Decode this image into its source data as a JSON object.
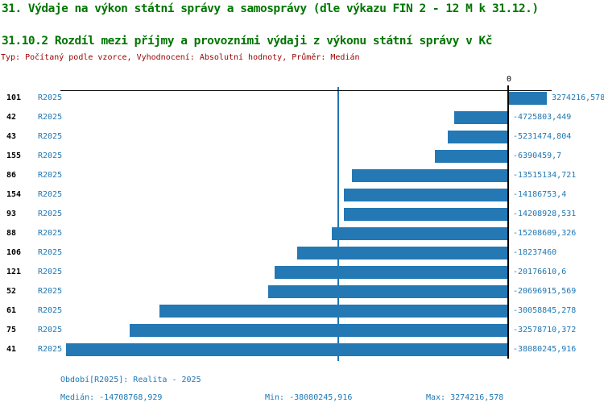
{
  "header": {
    "title1": "31. Výdaje na výkon státní správy a samosprávy (dle výkazu FIN 2 - 12 M k 31.12.)",
    "title2": "31.10.2 Rozdíl mezi příjmy a provozními výdaji z výkonu státní správy v Kč",
    "meta": "Typ: Počítaný podle vzorce, Vyhodnocení: Absolutní hodnoty, Průměr: Medián"
  },
  "colors": {
    "title_green": "#007500",
    "meta_red": "#990000",
    "text_blue": "#1f77b4",
    "bar_blue": "#2478b4",
    "median_line_blue": "#1f77b4",
    "axis_black": "#000000"
  },
  "chart_data": {
    "type": "bar",
    "orientation": "horizontal",
    "title": "31.10.2 Rozdíl mezi příjmy a provozními výdaji z výkonu státní správy v Kč",
    "xlabel": "",
    "ylabel": "",
    "axis_zero_label": "0",
    "period_label": "R2025",
    "grid": false,
    "legend_position": "none",
    "xlim": [
      -38080245.916,
      3274216.578
    ],
    "categories": [
      "101",
      "42",
      "43",
      "155",
      "86",
      "154",
      "93",
      "88",
      "106",
      "121",
      "52",
      "61",
      "75",
      "41"
    ],
    "values": [
      3274216.578,
      -4725803.449,
      -5231474.804,
      -6390459.7,
      -13515134.721,
      -14186753.4,
      -14208928.531,
      -15208609.326,
      -18237460,
      -20176610.6,
      -20696915.569,
      -30058845.278,
      -32578710.372,
      -38080245.916
    ],
    "value_displays": [
      "3274216,578",
      "-4725803,449",
      "-5231474,804",
      "-6390459,7",
      "-13515134,721",
      "-14186753,4",
      "-14208928,531",
      "-15208609,326",
      "-18237460",
      "-20176610,6",
      "-20696915,569",
      "-30058845,278",
      "-32578710,372",
      "-38080245,916"
    ],
    "median": -14708768.929,
    "min": -38080245.916,
    "max": 3274216.578
  },
  "footer": {
    "period": "Období[R2025]: Realita - 2025",
    "median": "Medián: -14708768,929",
    "min": "Min: -38080245,916",
    "max": "Max: 3274216,578"
  }
}
